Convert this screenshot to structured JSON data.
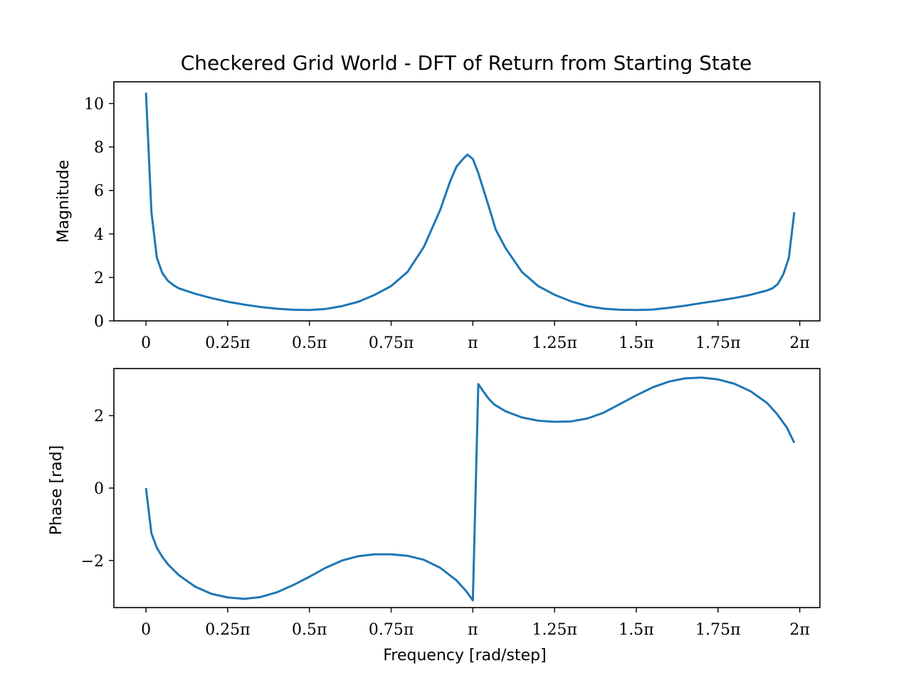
{
  "figure": {
    "title": "Checkered Grid World - DFT of Return from Starting State"
  },
  "colors": {
    "series": "#1f77b4",
    "axes": "#000000",
    "background": "#ffffff"
  },
  "chart_data": [
    {
      "type": "line",
      "title": "Checkered Grid World - DFT of Return from Starting State",
      "xlabel": "",
      "ylabel": "Magnitude",
      "grid": false,
      "xlim": [
        -0.0982,
        2.0617
      ],
      "ylim": [
        0,
        11
      ],
      "x_unit": "pi rad/step",
      "xticks": [
        0,
        0.25,
        0.5,
        0.75,
        1,
        1.25,
        1.5,
        1.75,
        2
      ],
      "xtick_labels": [
        "0",
        "0.25π",
        "0.5π",
        "0.75π",
        "π",
        "1.25π",
        "1.5π",
        "1.75π",
        "2π"
      ],
      "yticks": [
        0,
        2,
        4,
        6,
        8,
        10
      ],
      "ytick_labels": [
        "0",
        "2",
        "4",
        "6",
        "8",
        "10"
      ],
      "series": [
        {
          "x": [
            0,
            0.0167,
            0.0333,
            0.05,
            0.0667,
            0.0833,
            0.1,
            0.15,
            0.2,
            0.25,
            0.3,
            0.35,
            0.4,
            0.45,
            0.5,
            0.55,
            0.6,
            0.65,
            0.7,
            0.75,
            0.8,
            0.85,
            0.9,
            0.93,
            0.95,
            0.97,
            0.9833,
            1.0,
            1.0167,
            1.0333,
            1.05,
            1.07,
            1.1,
            1.15,
            1.2,
            1.25,
            1.3,
            1.35,
            1.4,
            1.45,
            1.5,
            1.55,
            1.6,
            1.65,
            1.7,
            1.75,
            1.8,
            1.85,
            1.9,
            1.9167,
            1.9333,
            1.95,
            1.9667,
            1.9833
          ],
          "values": [
            10.5,
            5.0,
            2.9,
            2.2,
            1.85,
            1.65,
            1.5,
            1.25,
            1.05,
            0.88,
            0.75,
            0.64,
            0.56,
            0.51,
            0.5,
            0.55,
            0.68,
            0.88,
            1.2,
            1.6,
            2.25,
            3.4,
            5.1,
            6.4,
            7.1,
            7.45,
            7.65,
            7.45,
            6.8,
            6.0,
            5.2,
            4.2,
            3.35,
            2.25,
            1.6,
            1.2,
            0.9,
            0.68,
            0.56,
            0.51,
            0.5,
            0.52,
            0.6,
            0.7,
            0.82,
            0.93,
            1.05,
            1.2,
            1.4,
            1.5,
            1.7,
            2.15,
            2.9,
            5.0
          ]
        }
      ]
    },
    {
      "type": "line",
      "title": "",
      "xlabel": "Frequency [rad/step]",
      "ylabel": "Phase [rad]",
      "grid": false,
      "xlim": [
        -0.0982,
        2.0617
      ],
      "ylim": [
        -3.3,
        3.3
      ],
      "x_unit": "pi rad/step",
      "xticks": [
        0,
        0.25,
        0.5,
        0.75,
        1,
        1.25,
        1.5,
        1.75,
        2
      ],
      "xtick_labels": [
        "0",
        "0.25π",
        "0.5π",
        "0.75π",
        "π",
        "1.25π",
        "1.5π",
        "1.75π",
        "2π"
      ],
      "yticks": [
        -2,
        0,
        2
      ],
      "ytick_labels": [
        "−2",
        "0",
        "2"
      ],
      "series": [
        {
          "x": [
            0,
            0.0167,
            0.0333,
            0.05,
            0.0667,
            0.1,
            0.15,
            0.2,
            0.25,
            0.3,
            0.35,
            0.4,
            0.45,
            0.5,
            0.55,
            0.6,
            0.65,
            0.7,
            0.75,
            0.8,
            0.85,
            0.9,
            0.95,
            0.98,
            1.0,
            1.0167,
            1.0333,
            1.05,
            1.0667,
            1.1,
            1.15,
            1.2,
            1.25,
            1.3,
            1.35,
            1.4,
            1.45,
            1.5,
            1.55,
            1.6,
            1.65,
            1.7,
            1.75,
            1.8,
            1.85,
            1.9,
            1.93,
            1.96,
            1.9833
          ],
          "values": [
            0,
            -1.25,
            -1.65,
            -1.9,
            -2.1,
            -2.4,
            -2.72,
            -2.92,
            -3.02,
            -3.06,
            -3.01,
            -2.88,
            -2.68,
            -2.45,
            -2.2,
            -2.0,
            -1.88,
            -1.83,
            -1.83,
            -1.87,
            -1.98,
            -2.2,
            -2.55,
            -2.85,
            -3.1,
            2.87,
            2.65,
            2.45,
            2.3,
            2.12,
            1.95,
            1.86,
            1.83,
            1.84,
            1.92,
            2.08,
            2.32,
            2.56,
            2.78,
            2.94,
            3.03,
            3.05,
            3.0,
            2.88,
            2.67,
            2.35,
            2.05,
            1.68,
            1.25
          ]
        }
      ]
    }
  ]
}
